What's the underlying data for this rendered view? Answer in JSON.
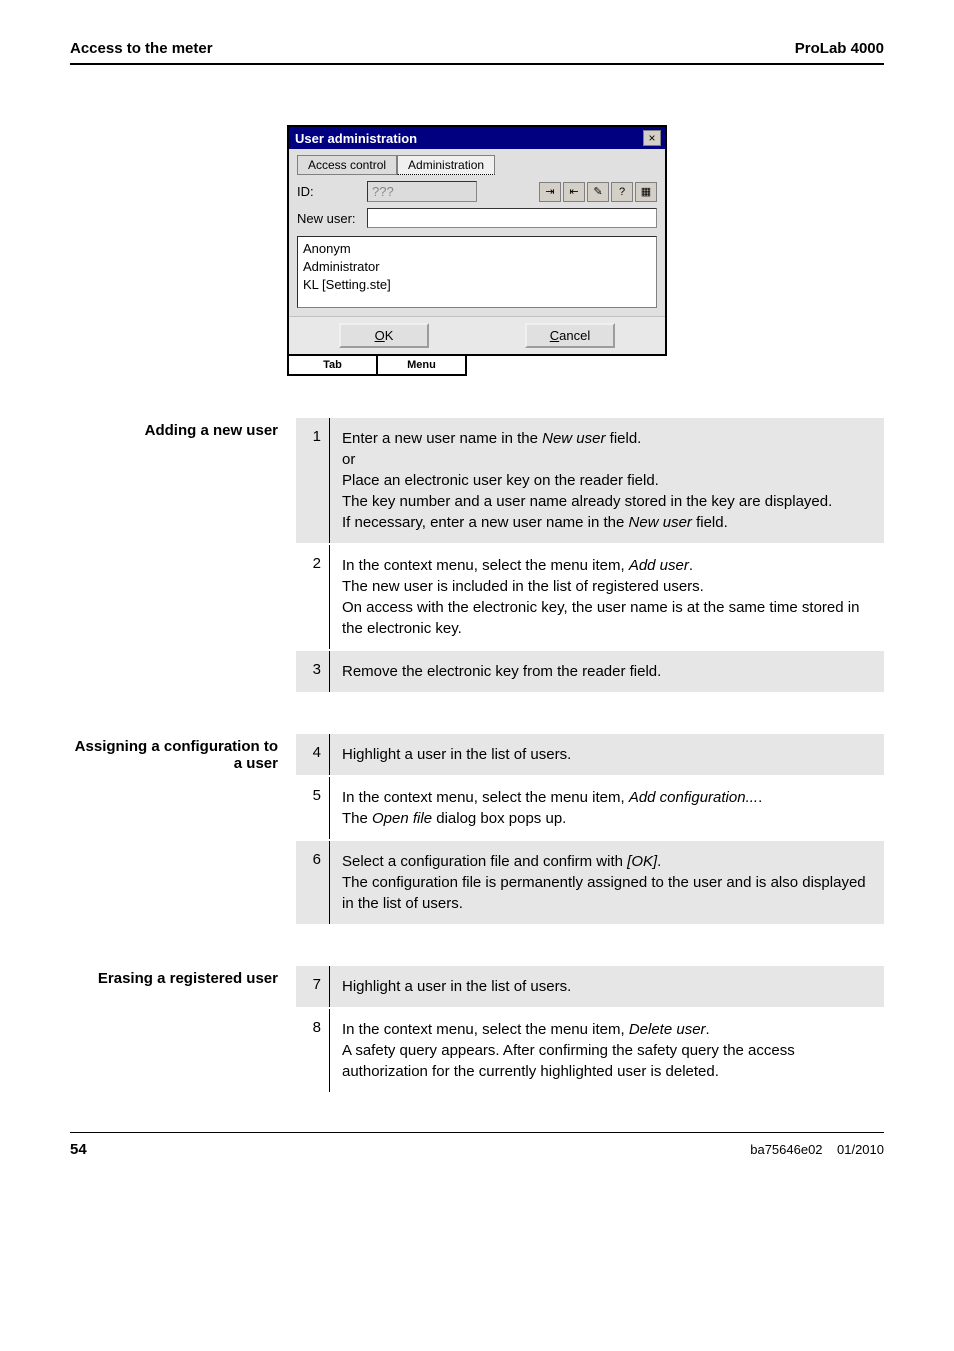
{
  "header": {
    "left": "Access to the meter",
    "right": "ProLab 4000"
  },
  "dialog": {
    "title": "User administration",
    "tabs": [
      "Access control",
      "Administration"
    ],
    "id_label": "ID:",
    "id_value": "???",
    "newuser_label": "New user:",
    "list": [
      "Anonym",
      "Administrator",
      "KL [Setting.ste]"
    ],
    "ok_underline": "O",
    "ok_rest": "K",
    "cancel_underline": "C",
    "cancel_rest": "ancel",
    "tab_label": "Tab",
    "menu_label": "Menu"
  },
  "toolbar_icons": [
    "⇥",
    "⇤",
    "✎",
    "?",
    "▦"
  ],
  "sections": {
    "add": {
      "label": "Adding a new user",
      "steps": [
        {
          "n": "1",
          "html": "Enter a new user name in the <span class='it'>New user</span> field.<br>or<br>Place an electronic user key on the reader field.<br>The key number and a user name already stored in the key are displayed.<br>If necessary, enter a new user name in the <span class='it'>New user</span> field."
        },
        {
          "n": "2",
          "html": "In the context menu, select the menu item, <span class='it'>Add user</span>.<br>The new user is included in the list of registered users.<br>On access with the electronic key, the user name is at the same time stored in the electronic key."
        },
        {
          "n": "3",
          "html": "Remove the electronic key from the reader field."
        }
      ]
    },
    "assign": {
      "label": "Assigning a configuration to a user",
      "steps": [
        {
          "n": "4",
          "html": "Highlight a user in the list of users."
        },
        {
          "n": "5",
          "html": "In the context menu, select the menu item, <span class='it'>Add configuration...</span>.<br>The <span class='it'>Open file</span> dialog box pops up."
        },
        {
          "n": "6",
          "html": "Select a configuration file and confirm with <span class='it'>[OK]</span>.<br>The configuration file is permanently assigned to the user and is also displayed in the list of users."
        }
      ]
    },
    "erase": {
      "label": "Erasing a registered user",
      "steps": [
        {
          "n": "7",
          "html": "Highlight a user in the list of users."
        },
        {
          "n": "8",
          "html": "In the context menu, select the menu item, <span class='it'>Delete user</span>.<br>A safety query appears. After confirming the safety query the access authorization for the currently highlighted user is deleted."
        }
      ]
    }
  },
  "footer": {
    "page": "54",
    "doc": "ba75646e02",
    "date": "01/2010"
  }
}
